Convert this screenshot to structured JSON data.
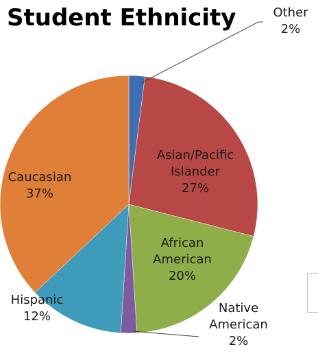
{
  "chart_data": {
    "type": "pie",
    "title": "Student Ethnicity",
    "slices": [
      {
        "label": "Other",
        "value": 2,
        "display": "2%",
        "color": "#3f6fb3"
      },
      {
        "label": "Asian/Pacific Islander",
        "value": 27,
        "display": "27%",
        "color": "#b84845"
      },
      {
        "label": "African American",
        "value": 20,
        "display": "20%",
        "color": "#8fae4a"
      },
      {
        "label": "Native American",
        "value": 2,
        "display": "2%",
        "color": "#7c5c9e"
      },
      {
        "label": "Hispanic",
        "value": 12,
        "display": "12%",
        "color": "#3e9bba"
      },
      {
        "label": "Caucasian",
        "value": 37,
        "display": "37%",
        "color": "#e07f38"
      }
    ],
    "legend": "none"
  }
}
